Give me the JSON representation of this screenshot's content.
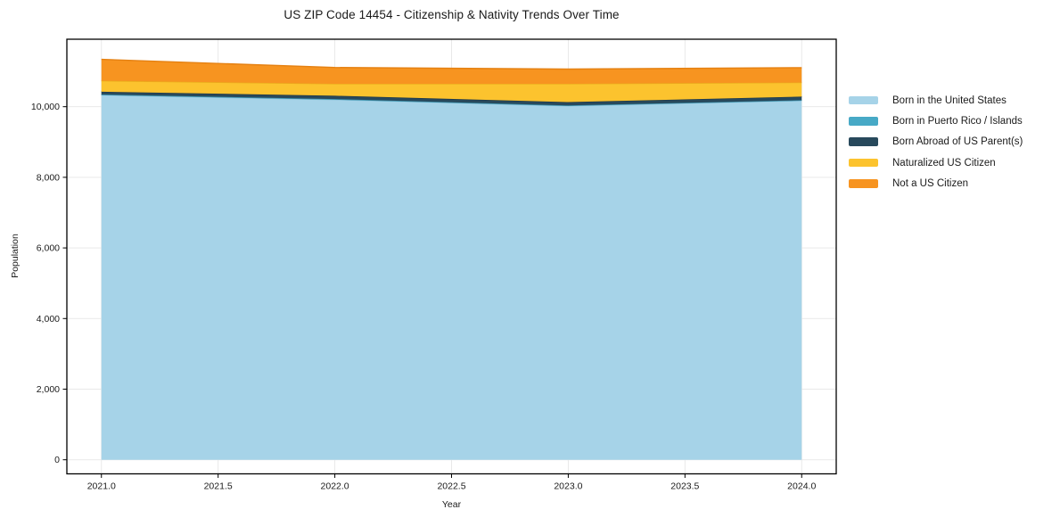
{
  "chart_data": {
    "type": "area",
    "stacked": true,
    "title": "US ZIP Code 14454 - Citizenship & Nativity Trends Over Time",
    "xlabel": "Year",
    "ylabel": "Population",
    "x": [
      2021,
      2022,
      2023,
      2024
    ],
    "series": [
      {
        "name": "Born in the United States",
        "color": "#A6D3E8",
        "edge_color": "#8FC4DD",
        "values": [
          10330,
          10200,
          10025,
          10170
        ]
      },
      {
        "name": "Born in Puerto Rico / Islands",
        "color": "#47A9C6",
        "edge_color": "#3B93AD",
        "values": [
          15,
          15,
          10,
          15
        ]
      },
      {
        "name": "Born Abroad of US Parent(s)",
        "color": "#28495C",
        "edge_color": "#1D3749",
        "values": [
          80,
          95,
          95,
          100
        ]
      },
      {
        "name": "Naturalized US Citizen",
        "color": "#FCC32E",
        "edge_color": "#EAAD1C",
        "values": [
          310,
          340,
          520,
          400
        ]
      },
      {
        "name": "Not a US Citizen",
        "color": "#F79420",
        "edge_color": "#E58112",
        "values": [
          605,
          460,
          415,
          420
        ]
      }
    ],
    "totals": [
      11340,
      11110,
      11065,
      11105
    ],
    "x_tick_labels": [
      "2021.0",
      "2021.5",
      "2022.0",
      "2022.5",
      "2023.0",
      "2023.5",
      "2024.0"
    ],
    "x_tick_values": [
      2021,
      2021.5,
      2022,
      2022.5,
      2023,
      2023.5,
      2024
    ],
    "y_tick_labels": [
      "0",
      "2,000",
      "4,000",
      "6,000",
      "8,000",
      "10,000"
    ],
    "y_tick_values": [
      0,
      2000,
      4000,
      6000,
      8000,
      10000
    ],
    "xlim": [
      2020.852,
      2024.148
    ],
    "ylim": [
      -399,
      11911
    ],
    "grid": true,
    "grid_color": "#e9e9e9",
    "axis_color": "#000000",
    "legend_position": "right"
  }
}
